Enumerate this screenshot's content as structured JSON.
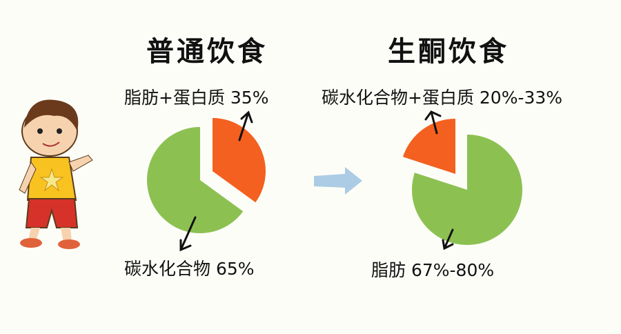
{
  "colors": {
    "carb_normal": "#8cc152",
    "fat_protein_normal": "#f4601f",
    "green": "#8cc152",
    "orange": "#f4601f",
    "arrow": "#9cc3e0"
  },
  "chart_data": [
    {
      "type": "pie",
      "title": "普通饮食",
      "slices": [
        {
          "label": "脂肪+蛋白质 35%",
          "value": 35,
          "color": "#f4601f",
          "exploded": true
        },
        {
          "label": "碳水化合物 65%",
          "value": 65,
          "color": "#8cc152",
          "exploded": false
        }
      ]
    },
    {
      "type": "pie",
      "title": "生酮饮食",
      "slices": [
        {
          "label": "碳水化合物+蛋白质 20%-33%",
          "value": 20,
          "color": "#f4601f",
          "exploded": true
        },
        {
          "label": "脂肪 67%-80%",
          "value": 80,
          "color": "#8cc152",
          "exploded": false
        }
      ]
    }
  ],
  "transition_icon": "right-arrow-icon",
  "illustration": "cartoon-boy"
}
